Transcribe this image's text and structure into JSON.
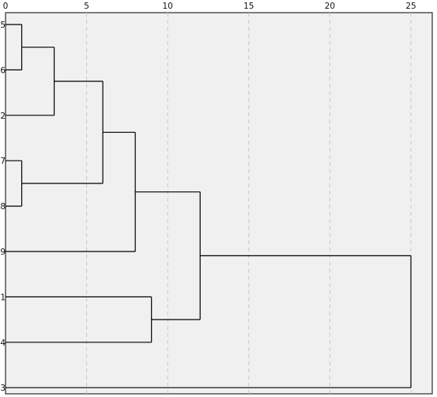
{
  "chart_data": {
    "type": "dendrogram",
    "title": "",
    "xlabel": "",
    "ylabel": "",
    "xlim": [
      0,
      25
    ],
    "x_ticks": [
      0,
      5,
      10,
      15,
      20,
      25
    ],
    "grid": "vertical dashed",
    "leaves": [
      "5",
      "6",
      "2",
      "7",
      "8",
      "9",
      "1",
      "4",
      "3"
    ],
    "merges": [
      {
        "left": "5",
        "right": "6",
        "height": 1
      },
      {
        "left": "7",
        "right": "8",
        "height": 1
      },
      {
        "left": "5-6",
        "right": "2",
        "height": 3
      },
      {
        "left": "5-6-2",
        "right": "7-8",
        "height": 6
      },
      {
        "left": "5-6-2-7-8",
        "right": "9",
        "height": 8
      },
      {
        "left": "1",
        "right": "4",
        "height": 9
      },
      {
        "left": "5-6-2-7-8-9",
        "right": "1-4",
        "height": 12
      },
      {
        "left": "5-6-2-7-8-9-1-4",
        "right": "3",
        "height": 25
      }
    ]
  },
  "colors": {
    "plot_background": "#f0f0f0",
    "border": "#000000",
    "grid": "#c8c8c8",
    "line": "#000000"
  }
}
